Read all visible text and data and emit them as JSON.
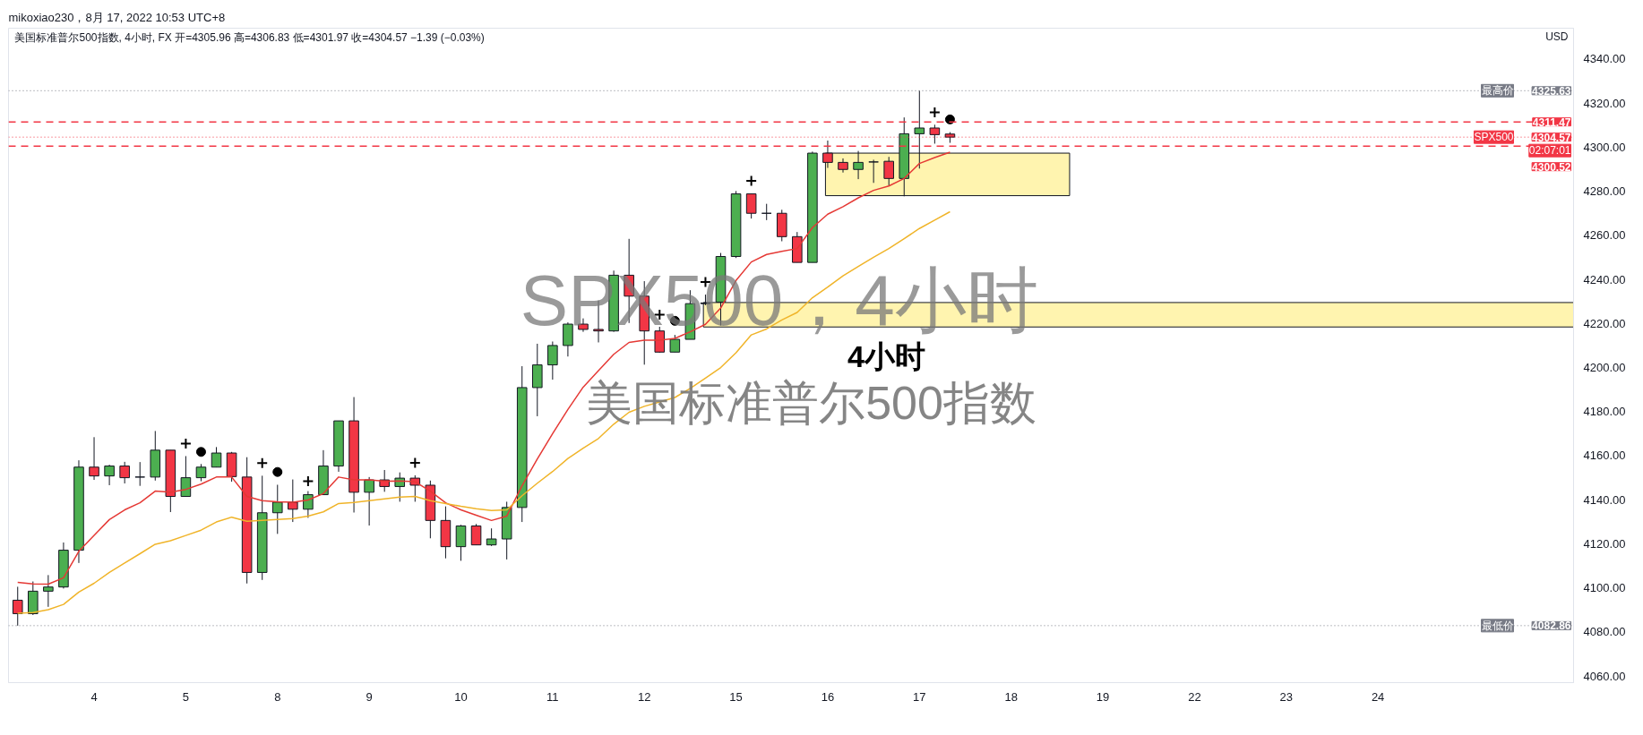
{
  "chart_data": {
    "type": "candlestick",
    "title": "mikoxiao230，8月 17, 2022 10:53 UTC+8",
    "subtitle": "美国标准普尔500指数, 4小时, FX  开=4305.96  高=4306.83  低=4301.97  收=4304.57  −1.39 (−0.03%)",
    "ylabel": "USD",
    "categories": [
      null,
      null,
      null,
      null,
      null,
      "4",
      null,
      null,
      null,
      null,
      null,
      "5",
      null,
      null,
      null,
      null,
      null,
      "8",
      null,
      null,
      null,
      null,
      null,
      "9",
      null,
      null,
      null,
      null,
      null,
      "10",
      null,
      null,
      null,
      null,
      null,
      "11",
      null,
      null,
      null,
      null,
      null,
      "12",
      null,
      null,
      null,
      null,
      null,
      "15",
      null,
      null,
      null,
      null,
      null,
      "16",
      null,
      null,
      null,
      null,
      null,
      "17",
      null,
      null,
      null,
      null,
      null,
      "18",
      null,
      null,
      null,
      null,
      null,
      "19",
      null,
      null,
      null,
      null,
      null,
      "22",
      null,
      null,
      null,
      null,
      null,
      "23",
      null,
      null,
      null,
      null,
      null,
      "24",
      null,
      null,
      null,
      null,
      null,
      null,
      null,
      null,
      null,
      null,
      null,
      null
    ],
    "ohlc": [
      [
        4094.4,
        4100.5,
        4082.86,
        4088.3
      ],
      [
        4088.3,
        4102.9,
        4087.7,
        4098.5
      ],
      [
        4098.5,
        4105.8,
        4091.4,
        4100.4
      ],
      [
        4100.4,
        4120.6,
        4099.7,
        4117.1
      ],
      [
        4117.1,
        4157.9,
        4111.3,
        4154.8
      ],
      [
        4154.8,
        4168.4,
        4149.0,
        4150.8
      ],
      [
        4150.8,
        4155.9,
        4146.6,
        4155.3
      ],
      [
        4155.3,
        4157.2,
        4147.4,
        4150.0
      ],
      [
        4150.3,
        4157.1,
        4146.3,
        4150.3
      ],
      [
        4150.3,
        4171.2,
        4148.7,
        4162.5
      ],
      [
        4162.5,
        4162.5,
        4134.4,
        4141.5
      ],
      [
        4141.5,
        4159.8,
        4141.5,
        4150.0
      ],
      [
        4150.0,
        4156.2,
        4148.4,
        4154.8
      ],
      [
        4154.8,
        4163.9,
        4154.8,
        4161.2
      ],
      [
        4161.2,
        4161.7,
        4148.2,
        4150.5
      ],
      [
        4150.3,
        4159.3,
        4102.0,
        4107.0
      ],
      [
        4107.0,
        4150.9,
        4103.6,
        4134.1
      ],
      [
        4134.1,
        4146.8,
        4124.5,
        4138.9
      ],
      [
        4138.9,
        4149.2,
        4129.9,
        4135.7
      ],
      [
        4135.7,
        4143.9,
        4131.8,
        4142.3
      ],
      [
        4142.3,
        4162.5,
        4142.3,
        4155.3
      ],
      [
        4155.3,
        4175.8,
        4152.7,
        4175.8
      ],
      [
        4175.8,
        4186.6,
        4134.2,
        4143.4
      ],
      [
        4143.4,
        4150.3,
        4128.3,
        4149.0
      ],
      [
        4149.0,
        4153.5,
        4143.6,
        4146.0
      ],
      [
        4146.0,
        4152.4,
        4139.1,
        4149.8
      ],
      [
        4149.8,
        4151.1,
        4139.1,
        4146.6
      ],
      [
        4146.6,
        4148.7,
        4122.5,
        4130.6
      ],
      [
        4130.6,
        4137.0,
        4113.4,
        4118.7
      ],
      [
        4118.7,
        4128.6,
        4112.3,
        4128.1
      ],
      [
        4128.1,
        4129.0,
        4119.5,
        4119.5
      ],
      [
        4119.5,
        4127.0,
        4119.0,
        4122.2
      ],
      [
        4122.2,
        4139.1,
        4112.9,
        4136.5
      ],
      [
        4136.5,
        4200.6,
        4129.9,
        4190.9
      ],
      [
        4190.9,
        4210.8,
        4177.9,
        4201.2
      ],
      [
        4201.2,
        4211.8,
        4194.5,
        4210.0
      ],
      [
        4210.0,
        4220.5,
        4205.0,
        4219.7
      ],
      [
        4219.7,
        4222.3,
        4216.2,
        4217.3
      ],
      [
        4217.3,
        4230.4,
        4211.4,
        4216.6
      ],
      [
        4216.6,
        4244.0,
        4216.2,
        4241.9
      ],
      [
        4241.9,
        4258.4,
        4220.2,
        4232.4
      ],
      [
        4232.4,
        4239.2,
        4201.3,
        4216.6
      ],
      [
        4216.6,
        4218.5,
        4206.7,
        4207.0
      ],
      [
        4207.0,
        4214.8,
        4207.0,
        4212.8
      ],
      [
        4212.8,
        4235.1,
        4212.8,
        4229.0
      ],
      [
        4229.0,
        4233.1,
        4228.3,
        4229.3
      ],
      [
        4229.7,
        4252.0,
        4219.1,
        4250.4
      ],
      [
        4250.4,
        4280.1,
        4249.7,
        4278.8
      ],
      [
        4278.8,
        4278.8,
        4267.6,
        4270.0
      ],
      [
        4270.0,
        4274.3,
        4266.9,
        4270.0
      ],
      [
        4270.0,
        4271.6,
        4257.3,
        4259.4
      ],
      [
        4259.4,
        4261.5,
        4247.7,
        4247.7
      ],
      [
        4247.7,
        4298.0,
        4247.7,
        4297.3
      ],
      [
        4297.3,
        4303.0,
        4290.6,
        4293.1
      ],
      [
        4293.1,
        4294.9,
        4288.5,
        4289.9
      ],
      [
        4289.9,
        4298.3,
        4285.5,
        4293.1
      ],
      [
        4293.3,
        4294.3,
        4283.8,
        4293.3
      ],
      [
        4293.6,
        4295.6,
        4282.4,
        4285.8
      ],
      [
        4285.8,
        4313.5,
        4277.7,
        4306.1
      ],
      [
        4306.1,
        4325.63,
        4290.3,
        4308.7
      ],
      [
        4308.7,
        4310.2,
        4301.6,
        4305.7
      ],
      [
        4305.96,
        4306.83,
        4301.97,
        4304.57
      ],
      null,
      null,
      null,
      null,
      null,
      null,
      null,
      null,
      null,
      null,
      null,
      null,
      null,
      null,
      null,
      null,
      null,
      null,
      null,
      null,
      null,
      null,
      null,
      null,
      null,
      null,
      null,
      null,
      null,
      null,
      null,
      null,
      null,
      null,
      null,
      null,
      null,
      null,
      null,
      null
    ],
    "colors": [
      "#f23645",
      "#4caf50",
      "#4caf50",
      "#4caf50",
      "#4caf50",
      "#f23645",
      "#4caf50",
      "#f23645",
      "#131722",
      "#4caf50",
      "#f23645",
      "#4caf50",
      "#4caf50",
      "#4caf50",
      "#f23645",
      "#f23645",
      "#4caf50",
      "#4caf50",
      "#f23645",
      "#4caf50",
      "#4caf50",
      "#4caf50",
      "#f23645",
      "#4caf50",
      "#f23645",
      "#4caf50",
      "#f23645",
      "#f23645",
      "#f23645",
      "#4caf50",
      "#f23645",
      "#4caf50",
      "#4caf50",
      "#4caf50",
      "#4caf50",
      "#4caf50",
      "#4caf50",
      "#f23645",
      "#f23645",
      "#4caf50",
      "#f23645",
      "#f23645",
      "#f23645",
      "#4caf50",
      "#4caf50",
      "#131722",
      "#4caf50",
      "#4caf50",
      "#f23645",
      "#131722",
      "#f23645",
      "#f23645",
      "#4caf50",
      "#f23645",
      "#f23645",
      "#4caf50",
      "#131722",
      "#f23645",
      "#4caf50",
      "#4caf50",
      "#f23645",
      "#f23645",
      null,
      null,
      null,
      null,
      null,
      null,
      null,
      null,
      null,
      null,
      null,
      null,
      null,
      null,
      null,
      null,
      null,
      null,
      null,
      null,
      null,
      null,
      null,
      null,
      null,
      null,
      null,
      null,
      null,
      null,
      null,
      null,
      null,
      null,
      null,
      null,
      null,
      null,
      null,
      null
    ],
    "series": [
      {
        "type": "line",
        "color": "#e53935",
        "values": [
          4102.5,
          4101.8,
          4101.7,
          4104.6,
          4116.6,
          4123.8,
          4131.0,
          4135.4,
          4138.6,
          4143.9,
          4143.4,
          4144.7,
          4147.1,
          4150.3,
          4150.3,
          4141.5,
          4139.6,
          4139.1,
          4138.9,
          4139.9,
          4142.8,
          4150.3,
          4149.0,
          4149.0,
          4148.4,
          4148.5,
          4148.2,
          4143.9,
          4138.6,
          4135.4,
          4133.0,
          4130.6,
          4132.6,
          4146.3,
          4158.5,
          4170.0,
          4181.0,
          4191.1,
          4198.6,
          4206.0,
          4211.4,
          4212.4,
          4212.4,
          4213.2,
          4216.2,
          4219.6,
          4227.0,
          4239.5,
          4247.9,
          4251.3,
          4252.7,
          4254.0,
          4263.5,
          4269.6,
          4273.0,
          4277.0,
          4280.4,
          4282.4,
          4285.8,
          4292.6,
          4295.3,
          4297.7,
          null,
          null,
          null,
          null,
          null,
          null,
          null,
          null,
          null,
          null,
          null,
          null,
          null,
          null,
          null,
          null,
          null,
          null,
          null,
          null,
          null,
          null,
          null,
          null,
          null,
          null,
          null,
          null,
          null,
          null,
          null,
          null,
          null,
          null,
          null,
          null,
          null,
          null,
          null,
          null
        ]
      },
      {
        "type": "line",
        "color": "#f0b429",
        "values": [
          4088.5,
          4088.8,
          4090.1,
          4092.5,
          4098.1,
          4102.1,
          4107.0,
          4111.3,
          4115.5,
          4119.8,
          4121.4,
          4123.8,
          4126.2,
          4129.9,
          4132.1,
          4130.2,
          4130.6,
          4131.0,
          4131.5,
          4132.6,
          4134.5,
          4138.3,
          4138.8,
          4139.6,
          4140.4,
          4141.2,
          4141.5,
          4139.6,
          4138.3,
          4137.0,
          4135.9,
          4135.1,
          4135.4,
          4141.8,
          4147.5,
          4152.8,
          4158.7,
          4163.4,
          4167.8,
          4174.3,
          4179.7,
          4182.4,
          4184.4,
          4186.4,
          4190.5,
          4195.2,
          4200.0,
          4206.7,
          4214.8,
          4217.5,
          4221.6,
          4225.0,
          4231.7,
          4236.5,
          4241.6,
          4245.9,
          4250.0,
          4254.0,
          4258.5,
          4263.1,
          4266.9,
          4270.7,
          null,
          null,
          null,
          null,
          null,
          null,
          null,
          null,
          null,
          null,
          null,
          null,
          null,
          null,
          null,
          null,
          null,
          null,
          null,
          null,
          null,
          null,
          null,
          null,
          null,
          null,
          null,
          null,
          null,
          null,
          null,
          null,
          null,
          null,
          null,
          null,
          null,
          null,
          null,
          null
        ]
      },
      {
        "type": "scatter",
        "marker": "cross",
        "color": "#000000",
        "values": [
          null,
          null,
          null,
          null,
          null,
          null,
          null,
          null,
          null,
          null,
          null,
          4165.5,
          null,
          null,
          null,
          null,
          4156.6,
          null,
          null,
          4148.4,
          null,
          null,
          null,
          null,
          null,
          null,
          4156.7,
          null,
          null,
          null,
          null,
          null,
          null,
          null,
          null,
          null,
          null,
          null,
          null,
          null,
          null,
          null,
          4224.0,
          null,
          null,
          4238.8,
          null,
          null,
          4284.7,
          null,
          null,
          null,
          null,
          null,
          null,
          null,
          null,
          null,
          null,
          null,
          4315.8,
          null,
          null,
          null,
          null,
          null,
          null,
          null,
          null,
          null,
          null,
          null,
          null,
          null,
          null,
          null,
          null,
          null,
          null,
          null,
          null,
          null,
          null,
          null,
          null,
          null,
          null,
          null,
          null,
          null,
          null,
          null,
          null,
          null,
          null,
          null,
          null,
          null,
          null,
          null,
          null,
          null
        ]
      },
      {
        "type": "scatter",
        "marker": "circle",
        "color": "#000000",
        "values": [
          null,
          null,
          null,
          null,
          null,
          null,
          null,
          null,
          null,
          null,
          null,
          null,
          4161.7,
          null,
          null,
          null,
          null,
          4152.6,
          null,
          null,
          null,
          null,
          null,
          null,
          null,
          null,
          null,
          null,
          null,
          null,
          null,
          null,
          null,
          null,
          null,
          null,
          null,
          null,
          null,
          null,
          null,
          null,
          null,
          4221.2,
          null,
          null,
          null,
          null,
          null,
          null,
          null,
          null,
          null,
          null,
          null,
          null,
          null,
          null,
          null,
          null,
          null,
          4312.6,
          null,
          null,
          null,
          null,
          null,
          null,
          null,
          null,
          null,
          null,
          null,
          null,
          null,
          null,
          null,
          null,
          null,
          null,
          null,
          null,
          null,
          null,
          null,
          null,
          null,
          null,
          null,
          null,
          null,
          null,
          null,
          null,
          null,
          null,
          null,
          null,
          null,
          null,
          null,
          null
        ]
      }
    ],
    "ref_lines": [
      {
        "axis": "y",
        "value": 4325.63,
        "label": "最高价",
        "color": "#787b86",
        "line_style": "dotted"
      },
      {
        "axis": "y",
        "value": 4311.47,
        "color": "#f23645",
        "line_style": "dashed"
      },
      {
        "axis": "y",
        "value": 4304.57,
        "label": "SPX500",
        "color": "#f23645",
        "line_style": "dotted"
      },
      {
        "axis": "y",
        "value": 4300.52,
        "color": "#f23645",
        "line_style": "dashed"
      },
      {
        "axis": "y",
        "value": 4082.86,
        "label": "最低价",
        "color": "#787b86",
        "line_style": "dotted"
      }
    ],
    "bands": [
      {
        "axis": "y",
        "from": 4278.0,
        "to": 4297.3,
        "color": "#fff3a6"
      },
      {
        "axis": "y",
        "from": 4218.4,
        "to": 4229.5,
        "color": "#fff3a6"
      }
    ],
    "annotations": [
      "SPX500，4小时",
      "4小时",
      "美国标准普尔500指数",
      "02:07:01",
      {
        "text": "4325.63",
        "y": 4325.63
      },
      {
        "text": "4311.47",
        "y": 4311.47
      },
      {
        "text": "4304.57",
        "y": 4304.57
      },
      {
        "text": "4300.52",
        "y": 4300.52
      },
      {
        "text": "4082.86",
        "y": 4082.86
      }
    ],
    "ylim": [
      4057,
      4354
    ],
    "yticks": [
      {
        "value": 4060,
        "label": "4060.00"
      },
      {
        "value": 4080,
        "label": "4080.00"
      },
      {
        "value": 4100,
        "label": "4100.00"
      },
      {
        "value": 4120,
        "label": "4120.00"
      },
      {
        "value": 4140,
        "label": "4140.00"
      },
      {
        "value": 4160,
        "label": "4160.00"
      },
      {
        "value": 4180,
        "label": "4180.00"
      },
      {
        "value": 4200,
        "label": "4200.00"
      },
      {
        "value": 4220,
        "label": "4220.00"
      },
      {
        "value": 4240,
        "label": "4240.00"
      },
      {
        "value": 4260,
        "label": "4260.00"
      },
      {
        "value": 4280,
        "label": "4280.00"
      },
      {
        "value": 4300,
        "label": "4300.00"
      },
      {
        "value": 4320,
        "label": "4320.00"
      },
      {
        "value": 4340,
        "label": "4340.00"
      }
    ],
    "grid": false
  }
}
